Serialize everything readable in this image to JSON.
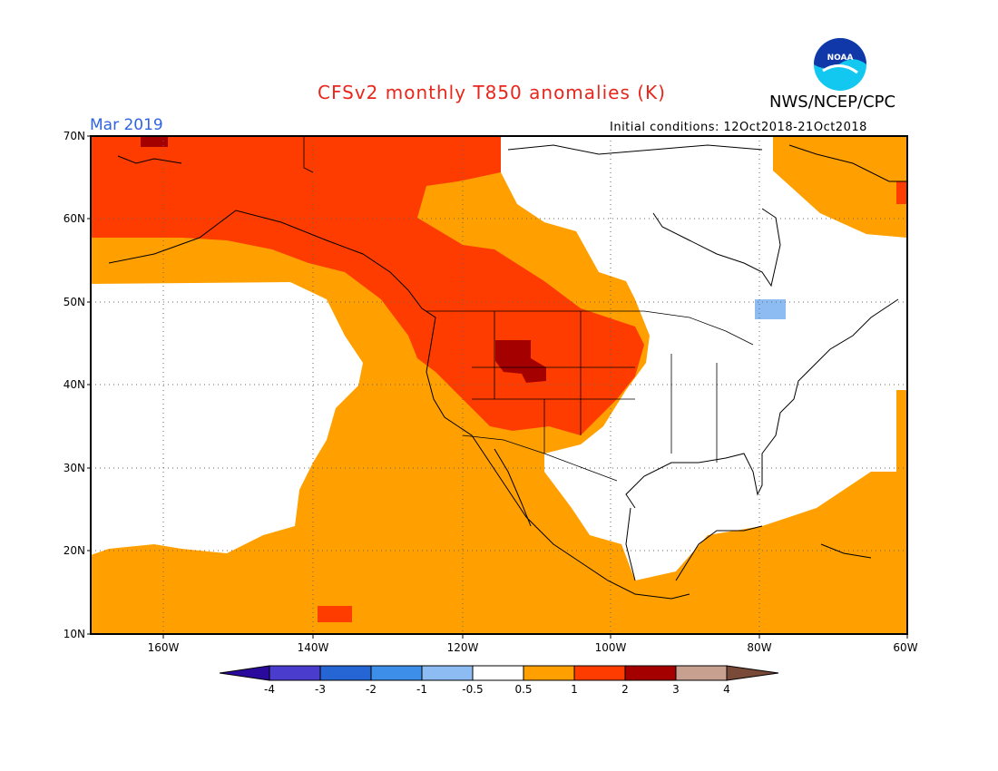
{
  "header": {
    "title": "CFSv2 monthly T850 anomalies (K)",
    "agency": "NWS/NCEP/CPC",
    "logo_text": "NOAA",
    "valid_month": "Mar 2019",
    "initial_conditions": "Initial conditions: 12Oct2018-21Oct2018"
  },
  "map": {
    "projection": "lat-lon",
    "lon_range": [
      -172,
      -60
    ],
    "lat_range": [
      10,
      70
    ],
    "lat_ticks": [
      "70N",
      "60N",
      "50N",
      "40N",
      "30N",
      "20N",
      "10N"
    ],
    "lon_ticks": [
      "160W",
      "140W",
      "120W",
      "100W",
      "80W",
      "60W"
    ],
    "gridlines": "dotted",
    "regions": [
      {
        "name": "NE Pacific / Alaska / Western Canada",
        "category": "1 to 2"
      },
      {
        "name": "Northern Rockies / Great Plains core",
        "category": "2 to 3"
      },
      {
        "name": "Eastern Pacific / Western US / Mexico",
        "category": "0.5 to 1"
      },
      {
        "name": "Eastern US / Central Canada",
        "category": "-0.5 to 0.5"
      },
      {
        "name": "Hudson Bay area patch",
        "category": "-1 to -0.5"
      },
      {
        "name": "Atlantic / Caribbean",
        "category": "0.5 to 1"
      }
    ]
  },
  "colorbar": {
    "labels": [
      "-4",
      "-3",
      "-2",
      "-1",
      "-0.5",
      "0.5",
      "1",
      "2",
      "3",
      "4"
    ],
    "colors": [
      "#2a0a9c",
      "#4a3ccc",
      "#2565d4",
      "#3c8ee8",
      "#8cbcf2",
      "#ffffff",
      "#ffa000",
      "#ff3c00",
      "#a50000",
      "#c8a090",
      "#7a4a38"
    ]
  }
}
